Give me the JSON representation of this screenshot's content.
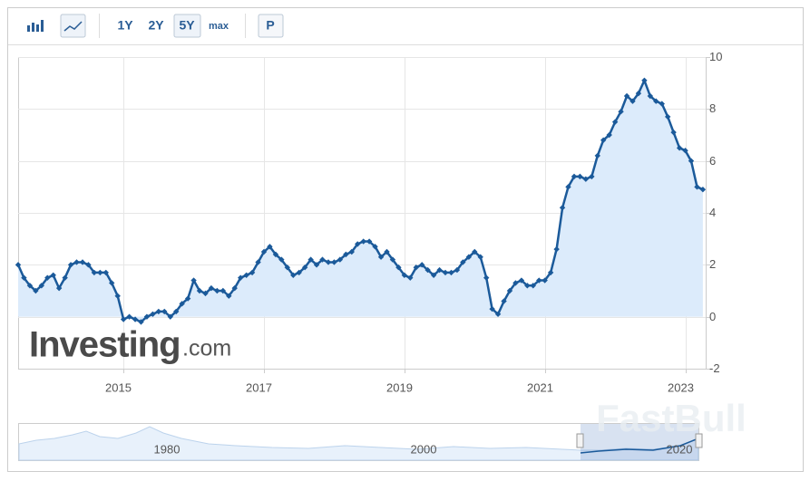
{
  "toolbar": {
    "buttons": [
      "1Y",
      "2Y",
      "5Y",
      "max",
      "P"
    ],
    "selected": "5Y"
  },
  "chart_data": {
    "type": "line",
    "x": [
      2013.5,
      2013.583,
      2013.667,
      2013.75,
      2013.833,
      2013.917,
      2014,
      2014.083,
      2014.167,
      2014.25,
      2014.333,
      2014.417,
      2014.5,
      2014.583,
      2014.667,
      2014.75,
      2014.833,
      2014.917,
      2015,
      2015.083,
      2015.167,
      2015.25,
      2015.333,
      2015.417,
      2015.5,
      2015.583,
      2015.667,
      2015.75,
      2015.833,
      2015.917,
      2016,
      2016.083,
      2016.167,
      2016.25,
      2016.333,
      2016.417,
      2016.5,
      2016.583,
      2016.667,
      2016.75,
      2016.833,
      2016.917,
      2017,
      2017.083,
      2017.167,
      2017.25,
      2017.333,
      2017.417,
      2017.5,
      2017.583,
      2017.667,
      2017.75,
      2017.833,
      2017.917,
      2018,
      2018.083,
      2018.167,
      2018.25,
      2018.333,
      2018.417,
      2018.5,
      2018.583,
      2018.667,
      2018.75,
      2018.833,
      2018.917,
      2019,
      2019.083,
      2019.167,
      2019.25,
      2019.333,
      2019.417,
      2019.5,
      2019.583,
      2019.667,
      2019.75,
      2019.833,
      2019.917,
      2020,
      2020.083,
      2020.167,
      2020.25,
      2020.333,
      2020.417,
      2020.5,
      2020.583,
      2020.667,
      2020.75,
      2020.833,
      2020.917,
      2021,
      2021.083,
      2021.167,
      2021.25,
      2021.333,
      2021.417,
      2021.5,
      2021.583,
      2021.667,
      2021.75,
      2021.833,
      2021.917,
      2022,
      2022.083,
      2022.167,
      2022.25,
      2022.333,
      2022.417,
      2022.5,
      2022.583,
      2022.667,
      2022.75,
      2022.833,
      2022.917,
      2023,
      2023.083,
      2023.167,
      2023.25
    ],
    "series": [
      {
        "color": "#1b5a9a",
        "values": [
          2.0,
          1.5,
          1.2,
          1.0,
          1.2,
          1.5,
          1.6,
          1.1,
          1.5,
          2.0,
          2.1,
          2.1,
          2.0,
          1.7,
          1.7,
          1.7,
          1.3,
          0.8,
          -0.1,
          0.0,
          -0.1,
          -0.2,
          0.0,
          0.1,
          0.2,
          0.2,
          0.0,
          0.2,
          0.5,
          0.7,
          1.4,
          1.0,
          0.9,
          1.1,
          1.0,
          1.0,
          0.8,
          1.1,
          1.5,
          1.6,
          1.7,
          2.1,
          2.5,
          2.7,
          2.4,
          2.2,
          1.9,
          1.6,
          1.7,
          1.9,
          2.2,
          2.0,
          2.2,
          2.1,
          2.1,
          2.2,
          2.4,
          2.5,
          2.8,
          2.9,
          2.9,
          2.7,
          2.3,
          2.5,
          2.2,
          1.9,
          1.6,
          1.5,
          1.9,
          2.0,
          1.8,
          1.6,
          1.8,
          1.7,
          1.7,
          1.8,
          2.1,
          2.3,
          2.5,
          2.3,
          1.5,
          0.3,
          0.1,
          0.6,
          1.0,
          1.3,
          1.4,
          1.2,
          1.2,
          1.4,
          1.4,
          1.7,
          2.6,
          4.2,
          5.0,
          5.4,
          5.4,
          5.3,
          5.4,
          6.2,
          6.8,
          7.0,
          7.5,
          7.9,
          8.5,
          8.3,
          8.6,
          9.1,
          8.5,
          8.3,
          8.2,
          7.7,
          7.1,
          6.5,
          6.4,
          6.0,
          5.0,
          4.9
        ]
      }
    ],
    "area_color": "#dcebfb",
    "xlim": [
      2013.5,
      2023.29
    ],
    "xticks": [
      2015,
      2017,
      2019,
      2021,
      2023
    ],
    "ylim": [
      -2,
      10
    ],
    "yticks": [
      10,
      8,
      6,
      4,
      2,
      0,
      -2
    ],
    "grid": true
  },
  "navigator": {
    "labels": [
      "1980",
      "2000",
      "2020"
    ]
  },
  "watermark": {
    "brand": "Investing",
    "suffix": ".com",
    "partner": "FastBull"
  }
}
